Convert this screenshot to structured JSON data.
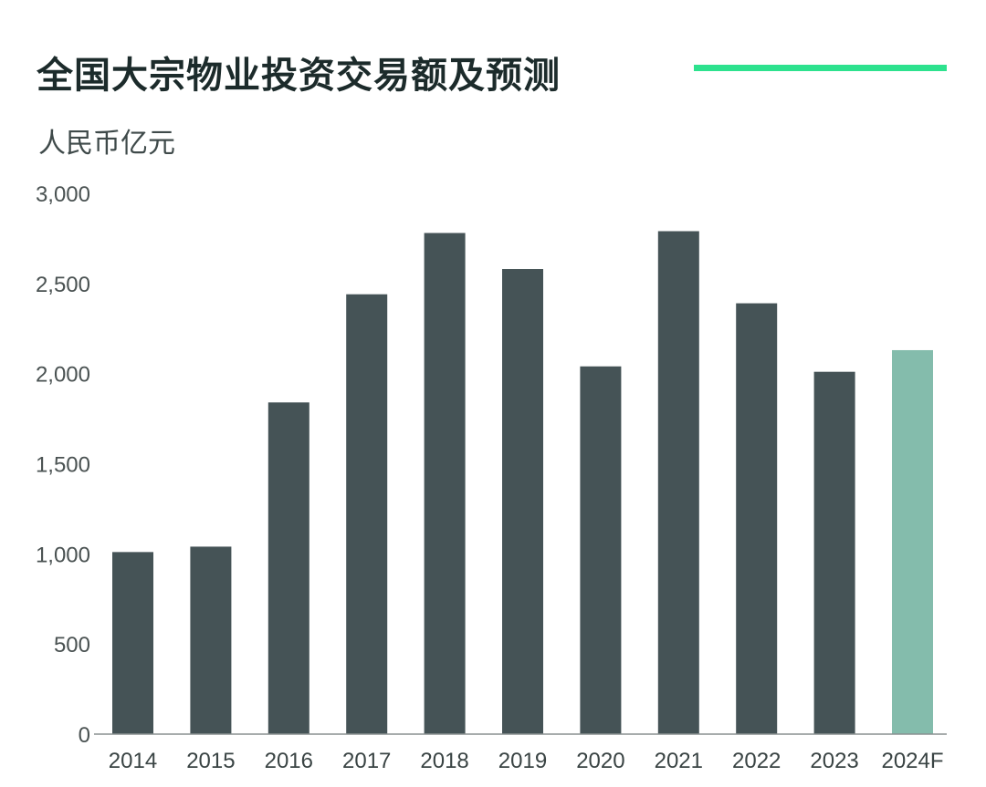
{
  "colors": {
    "bar": "#455356",
    "forecast": "#84bcac",
    "accent": "#2de28e",
    "axis": "#8a9191"
  },
  "chart_data": {
    "type": "bar",
    "title": "全国大宗物业投资交易额及预测",
    "ylabel": "人民币亿元",
    "xlabel": "",
    "ylim": [
      0,
      3000
    ],
    "yticks": [
      0,
      500,
      1000,
      1500,
      2000,
      2500,
      3000
    ],
    "ytick_labels": [
      "0",
      "500",
      "1,000",
      "1,500",
      "2,000",
      "2,500",
      "3,000"
    ],
    "categories": [
      "2014",
      "2015",
      "2016",
      "2017",
      "2018",
      "2019",
      "2020",
      "2021",
      "2022",
      "2023",
      "2024F"
    ],
    "values": [
      1010,
      1040,
      1840,
      2440,
      2780,
      2580,
      2040,
      2790,
      2390,
      2010,
      2130
    ],
    "forecast_categories": [
      "2024F"
    ],
    "grid": false
  }
}
